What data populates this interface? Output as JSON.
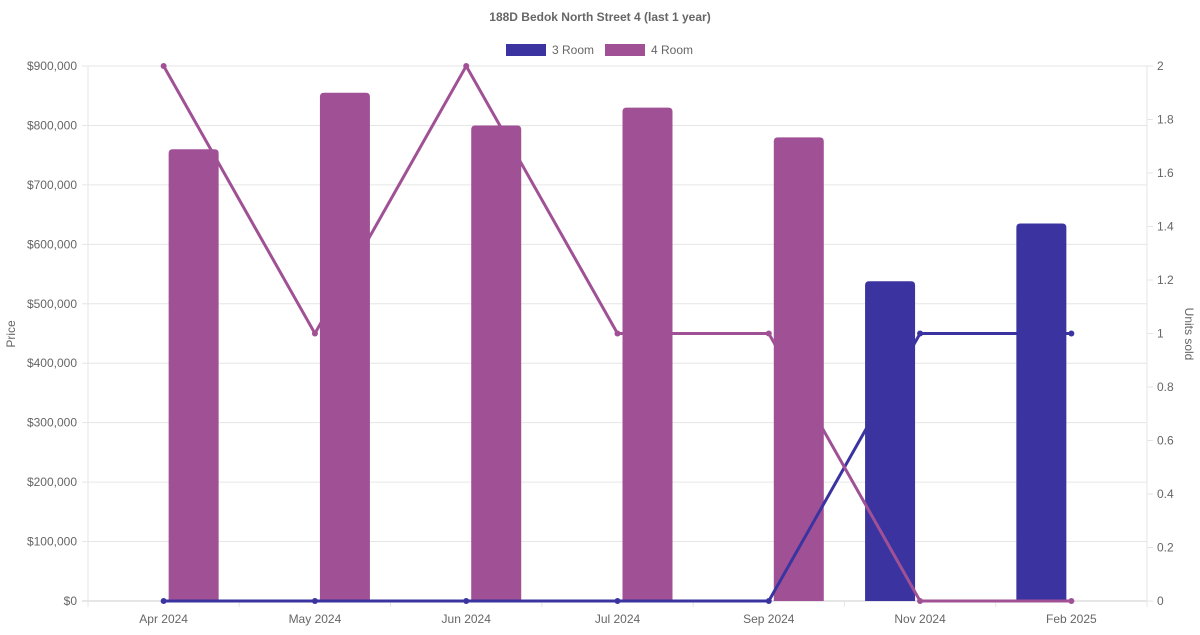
{
  "chart_data": {
    "type": "bar",
    "title": "188D Bedok North Street 4 (last 1 year)",
    "categories": [
      "Apr 2024",
      "May 2024",
      "Jun 2024",
      "Jul 2024",
      "Sep 2024",
      "Nov 2024",
      "Feb 2025"
    ],
    "ylabel": "Price",
    "y2label": "Units sold",
    "ylim": [
      0,
      900000
    ],
    "y2lim": [
      0,
      2
    ],
    "yticks": [
      "$0",
      "$100,000",
      "$200,000",
      "$300,000",
      "$400,000",
      "$500,000",
      "$600,000",
      "$700,000",
      "$800,000",
      "$900,000"
    ],
    "y2ticks": [
      "0",
      "0.2",
      "0.4",
      "0.6",
      "0.8",
      "1",
      "1.2",
      "1.4",
      "1.6",
      "1.8",
      "2"
    ],
    "grid": true,
    "legend_position": "top",
    "series": [
      {
        "name": "3 Room",
        "color": "#3b34a0",
        "price": [
          null,
          null,
          null,
          null,
          null,
          538000,
          635000
        ],
        "units": [
          0,
          0,
          0,
          0,
          0,
          1,
          1
        ]
      },
      {
        "name": "4 Room",
        "color": "#a05195",
        "price": [
          760000,
          855000,
          800000,
          830000,
          780000,
          null,
          null
        ],
        "units": [
          2,
          1,
          2,
          1,
          1,
          0,
          0
        ]
      }
    ]
  }
}
